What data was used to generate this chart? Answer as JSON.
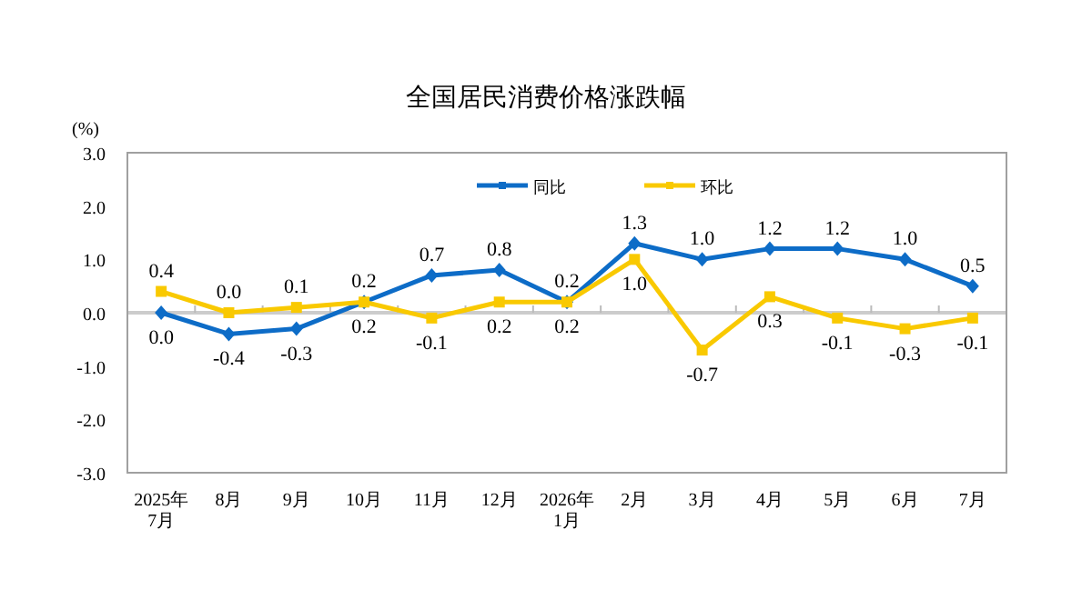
{
  "chart_data": {
    "type": "line",
    "title": "全国居民消费价格涨跌幅",
    "ylabel": "(%)",
    "categories": [
      "2025年\n7月",
      "8月",
      "9月",
      "10月",
      "11月",
      "12月",
      "2026年\n1月",
      "2月",
      "3月",
      "4月",
      "5月",
      "6月",
      "7月"
    ],
    "series": [
      {
        "name": "同比",
        "color": "#0d6cc7",
        "marker": "diamond",
        "values": [
          0.0,
          -0.4,
          -0.3,
          0.2,
          0.7,
          0.8,
          0.2,
          1.3,
          1.0,
          1.2,
          1.2,
          1.0,
          0.5
        ],
        "value_labels": [
          "0.0",
          "-0.4",
          "-0.3",
          "0.2",
          "0.7",
          "0.8",
          "0.2",
          "1.3",
          "1.0",
          "1.2",
          "1.2",
          "1.0",
          "0.5"
        ]
      },
      {
        "name": "环比",
        "color": "#f9c900",
        "marker": "square",
        "values": [
          0.4,
          0.0,
          0.1,
          0.2,
          -0.1,
          0.2,
          0.2,
          1.0,
          -0.7,
          0.3,
          -0.1,
          -0.3,
          -0.1
        ],
        "value_labels": [
          "0.4",
          "0.0",
          "0.1",
          "0.2",
          "-0.1",
          "0.2",
          "0.2",
          "1.0",
          "-0.7",
          "0.3",
          "-0.1",
          "-0.3",
          "-0.1"
        ]
      }
    ],
    "ylim": [
      -3,
      3
    ],
    "yticks": [
      {
        "value": 3,
        "label": "3.0"
      },
      {
        "value": 2,
        "label": "2.0"
      },
      {
        "value": 1,
        "label": "1.0"
      },
      {
        "value": 0,
        "label": "0.0"
      },
      {
        "value": -1,
        "label": "-1.0"
      },
      {
        "value": -2,
        "label": "-2.0"
      },
      {
        "value": -3,
        "label": "-3.0"
      }
    ],
    "ref_lines": [
      {
        "axis": "y",
        "value": 0,
        "color": "#cccccc"
      }
    ],
    "legend": "top",
    "grid": false,
    "line_style": "solid"
  }
}
